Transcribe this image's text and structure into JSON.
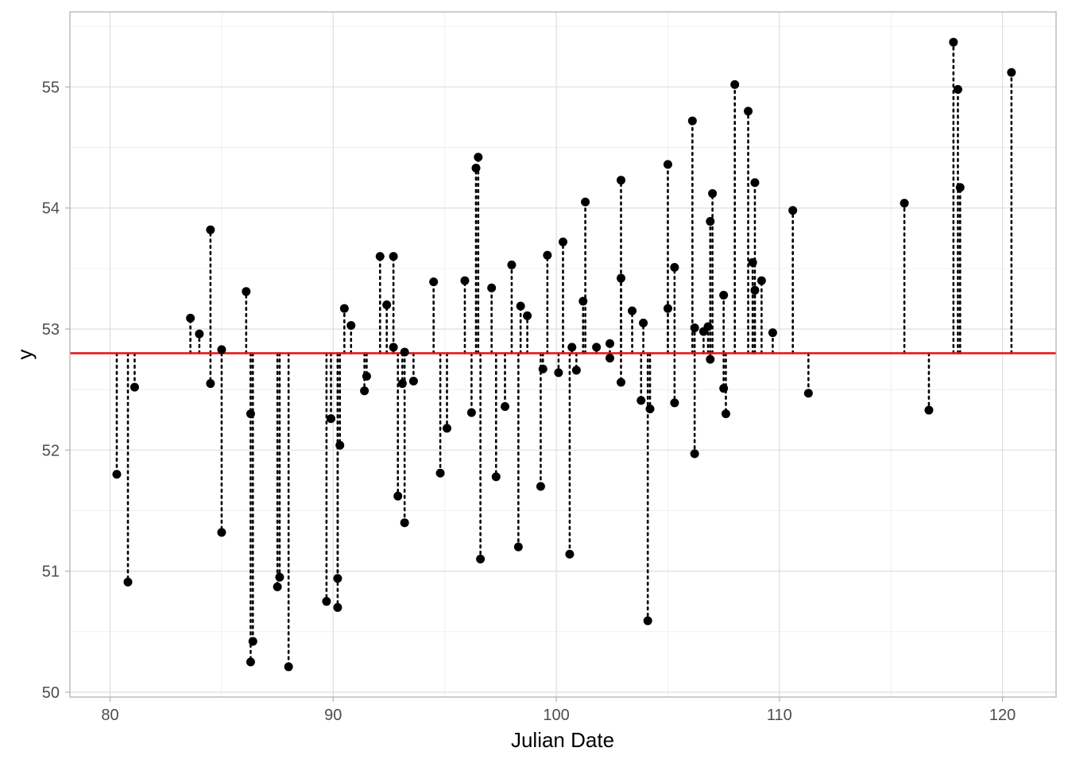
{
  "chart_data": {
    "type": "scatter",
    "title": "",
    "xlabel": "Julian Date",
    "ylabel": "y",
    "xlim": [
      78.2,
      122.4
    ],
    "ylim": [
      49.96,
      55.62
    ],
    "x_ticks": [
      80,
      90,
      100,
      110,
      120
    ],
    "y_ticks": [
      50,
      51,
      52,
      53,
      54,
      55
    ],
    "grid": true,
    "theme": "light",
    "legend": "none",
    "reference_line": {
      "y": 52.8,
      "color": "#e31a1c"
    },
    "residual_segments": {
      "to_y": 52.8,
      "style": "dotted",
      "color": "#000000"
    },
    "point_color": "#000000",
    "points": [
      {
        "x": 80.3,
        "y": 51.8
      },
      {
        "x": 80.8,
        "y": 50.91
      },
      {
        "x": 81.1,
        "y": 52.52
      },
      {
        "x": 83.6,
        "y": 53.09
      },
      {
        "x": 84.0,
        "y": 52.96
      },
      {
        "x": 84.5,
        "y": 53.82
      },
      {
        "x": 84.5,
        "y": 52.55
      },
      {
        "x": 85.0,
        "y": 52.83
      },
      {
        "x": 85.0,
        "y": 51.32
      },
      {
        "x": 86.1,
        "y": 53.31
      },
      {
        "x": 86.3,
        "y": 52.3
      },
      {
        "x": 86.4,
        "y": 50.42
      },
      {
        "x": 86.3,
        "y": 50.25
      },
      {
        "x": 87.5,
        "y": 50.87
      },
      {
        "x": 87.6,
        "y": 50.95
      },
      {
        "x": 88.0,
        "y": 50.21
      },
      {
        "x": 89.7,
        "y": 50.75
      },
      {
        "x": 89.9,
        "y": 52.26
      },
      {
        "x": 90.3,
        "y": 52.04
      },
      {
        "x": 90.2,
        "y": 50.94
      },
      {
        "x": 90.2,
        "y": 50.7
      },
      {
        "x": 90.5,
        "y": 53.17
      },
      {
        "x": 90.8,
        "y": 53.03
      },
      {
        "x": 91.5,
        "y": 52.61
      },
      {
        "x": 91.4,
        "y": 52.49
      },
      {
        "x": 92.1,
        "y": 53.6
      },
      {
        "x": 92.4,
        "y": 53.2
      },
      {
        "x": 92.7,
        "y": 53.6
      },
      {
        "x": 92.7,
        "y": 52.85
      },
      {
        "x": 92.9,
        "y": 51.62
      },
      {
        "x": 93.2,
        "y": 52.81
      },
      {
        "x": 93.1,
        "y": 52.55
      },
      {
        "x": 93.2,
        "y": 51.4
      },
      {
        "x": 93.6,
        "y": 52.57
      },
      {
        "x": 94.5,
        "y": 53.39
      },
      {
        "x": 94.8,
        "y": 51.81
      },
      {
        "x": 95.1,
        "y": 52.18
      },
      {
        "x": 95.9,
        "y": 53.4
      },
      {
        "x": 96.2,
        "y": 52.31
      },
      {
        "x": 96.5,
        "y": 54.42
      },
      {
        "x": 96.4,
        "y": 54.33
      },
      {
        "x": 96.6,
        "y": 51.1
      },
      {
        "x": 97.1,
        "y": 53.34
      },
      {
        "x": 97.3,
        "y": 51.78
      },
      {
        "x": 97.7,
        "y": 52.36
      },
      {
        "x": 98.0,
        "y": 53.53
      },
      {
        "x": 98.4,
        "y": 53.19
      },
      {
        "x": 98.3,
        "y": 51.2
      },
      {
        "x": 98.7,
        "y": 53.11
      },
      {
        "x": 99.3,
        "y": 51.7
      },
      {
        "x": 99.4,
        "y": 52.67
      },
      {
        "x": 99.6,
        "y": 53.61
      },
      {
        "x": 100.1,
        "y": 52.64
      },
      {
        "x": 100.3,
        "y": 53.72
      },
      {
        "x": 100.7,
        "y": 52.85
      },
      {
        "x": 100.9,
        "y": 52.66
      },
      {
        "x": 100.6,
        "y": 51.14
      },
      {
        "x": 101.2,
        "y": 53.23
      },
      {
        "x": 101.3,
        "y": 54.05
      },
      {
        "x": 101.8,
        "y": 52.85
      },
      {
        "x": 102.4,
        "y": 52.88
      },
      {
        "x": 102.4,
        "y": 52.76
      },
      {
        "x": 102.9,
        "y": 54.23
      },
      {
        "x": 102.9,
        "y": 53.42
      },
      {
        "x": 102.9,
        "y": 52.56
      },
      {
        "x": 103.4,
        "y": 53.15
      },
      {
        "x": 103.8,
        "y": 52.41
      },
      {
        "x": 103.9,
        "y": 53.05
      },
      {
        "x": 104.2,
        "y": 52.34
      },
      {
        "x": 104.1,
        "y": 50.59
      },
      {
        "x": 105.0,
        "y": 54.36
      },
      {
        "x": 105.0,
        "y": 53.17
      },
      {
        "x": 105.3,
        "y": 53.51
      },
      {
        "x": 105.3,
        "y": 52.39
      },
      {
        "x": 106.1,
        "y": 54.72
      },
      {
        "x": 106.2,
        "y": 53.01
      },
      {
        "x": 106.2,
        "y": 51.97
      },
      {
        "x": 106.6,
        "y": 52.98
      },
      {
        "x": 106.8,
        "y": 53.02
      },
      {
        "x": 106.9,
        "y": 53.89
      },
      {
        "x": 107.0,
        "y": 54.12
      },
      {
        "x": 106.9,
        "y": 52.75
      },
      {
        "x": 107.5,
        "y": 53.28
      },
      {
        "x": 107.5,
        "y": 52.51
      },
      {
        "x": 107.6,
        "y": 52.3
      },
      {
        "x": 108.0,
        "y": 55.02
      },
      {
        "x": 108.6,
        "y": 54.8
      },
      {
        "x": 108.9,
        "y": 54.21
      },
      {
        "x": 108.8,
        "y": 53.55
      },
      {
        "x": 108.9,
        "y": 53.32
      },
      {
        "x": 109.2,
        "y": 53.4
      },
      {
        "x": 109.7,
        "y": 52.97
      },
      {
        "x": 110.6,
        "y": 53.98
      },
      {
        "x": 111.3,
        "y": 52.47
      },
      {
        "x": 115.6,
        "y": 54.04
      },
      {
        "x": 116.7,
        "y": 52.33
      },
      {
        "x": 117.8,
        "y": 55.37
      },
      {
        "x": 118.0,
        "y": 54.98
      },
      {
        "x": 118.1,
        "y": 54.17
      },
      {
        "x": 120.4,
        "y": 55.12
      }
    ]
  }
}
